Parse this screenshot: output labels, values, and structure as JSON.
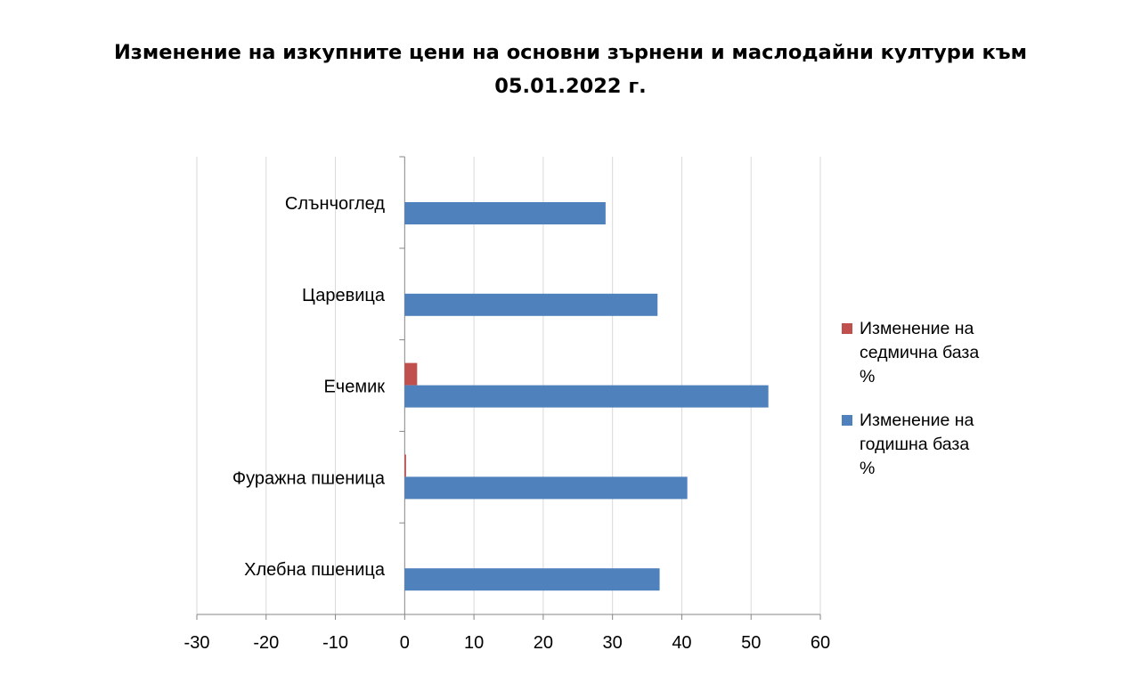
{
  "title_lines": [
    "Изменение на изкупните цени на основни зърнени и маслодайни култури към",
    "05.01.2022 г."
  ],
  "colors": {
    "weekly": "#c0504d",
    "yearly": "#4f81bd",
    "grid": "#d9d9d9",
    "axis": "#868686"
  },
  "chart_data": {
    "type": "bar",
    "orientation": "horizontal",
    "title": "Изменение на изкупните цени на основни зърнени и маслодайни култури към 05.01.2022 г.",
    "categories": [
      "Слънчоглед",
      "Царевица",
      "Ечемик",
      "Фуражна пшеница",
      "Хлебна пшеница"
    ],
    "series": [
      {
        "name_lines": [
          "Изменение на",
          "седмична база",
          "%"
        ],
        "name": "Изменение на седмична база %",
        "color": "#c0504d",
        "values": [
          0,
          0,
          1.8,
          0.2,
          0
        ]
      },
      {
        "name_lines": [
          "Изменение на",
          "годишна база",
          "%"
        ],
        "name": "Изменение на годишна база %",
        "color": "#4f81bd",
        "values": [
          29.0,
          36.5,
          52.5,
          40.8,
          36.8
        ]
      }
    ],
    "xlim": [
      -30,
      60
    ],
    "xticks": [
      "-30",
      "-20",
      "-10",
      "0",
      "10",
      "20",
      "30",
      "40",
      "50",
      "60"
    ],
    "grid": true,
    "legend_position": "right"
  }
}
